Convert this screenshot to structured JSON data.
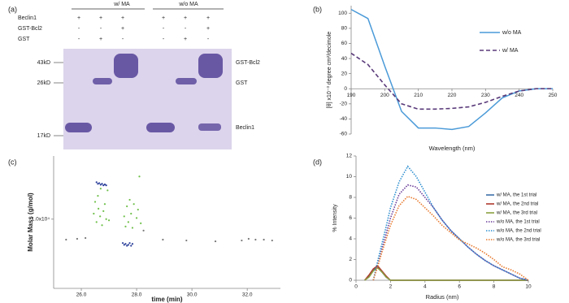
{
  "gel": {
    "label": "(a)",
    "groups": [
      "w/ MA",
      "w/o MA"
    ],
    "rows": [
      {
        "name": "Beclin1",
        "lanes": [
          "+",
          "+",
          "+",
          "+",
          "+",
          "+"
        ]
      },
      {
        "name": "GST-Bcl2",
        "lanes": [
          "-",
          "-",
          "+",
          "-",
          "-",
          "+"
        ]
      },
      {
        "name": "GST",
        "lanes": [
          "-",
          "+",
          "-",
          "-",
          "+",
          "-"
        ]
      }
    ],
    "markers": [
      "43kD",
      "26kD",
      "17kD"
    ],
    "bands": [
      "GST-Bcl2",
      "GST",
      "Beclin1"
    ]
  },
  "chart_data": [
    {
      "type": "line",
      "panel": "(b)",
      "x_label": "Wavelength (nm)",
      "y_label": "[θ] x10⁻³ degree cm²/decimole",
      "x": [
        190,
        195,
        200,
        205,
        210,
        215,
        220,
        225,
        230,
        235,
        240,
        245,
        250
      ],
      "series": [
        {
          "name": "w/o MA",
          "color": "#4a9ad8",
          "style": "solid",
          "values": [
            105,
            93,
            30,
            -30,
            -52,
            -52,
            -54,
            -50,
            -32,
            -12,
            -3,
            0,
            0
          ]
        },
        {
          "name": "w/ MA",
          "color": "#5a3a7a",
          "style": "dashed",
          "values": [
            47,
            32,
            5,
            -20,
            -27,
            -27,
            -26,
            -24,
            -18,
            -10,
            -3,
            0,
            0
          ]
        }
      ],
      "xlim": [
        190,
        250
      ],
      "xticks": [
        190,
        200,
        210,
        220,
        230,
        240,
        250
      ],
      "ylim": [
        -60,
        110
      ],
      "yticks": [
        -60,
        -40,
        -20,
        0,
        20,
        40,
        60,
        80,
        100
      ],
      "legend": "right"
    },
    {
      "type": "scatter",
      "panel": "(c)",
      "x_label": "time (min)",
      "y_label": "Molar Mass (g/mol)",
      "log_y": true,
      "series": [
        {
          "color": "#6fc04a",
          "x": [
            26.45,
            26.5,
            26.55,
            26.6,
            26.62,
            26.68,
            26.7,
            26.75,
            26.8,
            26.85,
            26.9,
            26.95,
            27.0,
            27.55,
            27.6,
            27.65,
            27.7,
            27.75,
            27.8,
            27.85,
            27.9,
            28.0,
            28.05,
            28.1,
            28.15
          ],
          "values": [
            11000,
            13500,
            9500,
            15000,
            12000,
            10500,
            17000,
            9000,
            11500,
            13000,
            10000,
            16500,
            9800,
            10500,
            8800,
            12500,
            9500,
            14000,
            11000,
            8600,
            13000,
            10200,
            11800,
            21000,
            9300
          ]
        },
        {
          "color": "#2a3f9a",
          "x": [
            26.55,
            26.6,
            26.65,
            26.7,
            26.75,
            26.8,
            26.85,
            26.9,
            27.5,
            27.55,
            27.6,
            27.65,
            27.7,
            27.75,
            27.8,
            27.85
          ],
          "values": [
            19000,
            18500,
            18700,
            18200,
            18500,
            18000,
            18300,
            18000,
            6600,
            6400,
            6500,
            6300,
            6400,
            6600,
            6300,
            6500
          ]
        },
        {
          "color": "#777777",
          "x": [
            25.45,
            25.85,
            26.15,
            28.25,
            28.95,
            29.8,
            30.85,
            31.8,
            32.05,
            32.3,
            32.6,
            32.9
          ],
          "values": [
            7000,
            7100,
            7200,
            8200,
            7000,
            6900,
            6800,
            6900,
            7100,
            7000,
            7000,
            6900
          ]
        }
      ],
      "xlim": [
        25,
        33.2
      ],
      "xticks": [
        {
          "value": 26,
          "label": "26.0"
        },
        {
          "value": 28,
          "label": "28.0"
        },
        {
          "value": 30,
          "label": "30.0"
        },
        {
          "value": 32,
          "label": "32.0"
        }
      ],
      "ylim": [
        3000,
        30000
      ],
      "yticks": [
        {
          "value": 10000,
          "label": "1.0x10⁴"
        }
      ]
    },
    {
      "type": "line",
      "panel": "(d)",
      "x_label": "Radius (nm)",
      "y_label": "% Intensity",
      "x": [
        0.5,
        0.75,
        1,
        1.25,
        1.5,
        1.75,
        2,
        2.5,
        3,
        3.5,
        4,
        4.5,
        5,
        5.5,
        6,
        6.5,
        7,
        7.5,
        8,
        8.5,
        9,
        9.5,
        10
      ],
      "series": [
        {
          "name": "w/ MA, the 1st trial",
          "color": "#3e6fa8",
          "style": "solid",
          "values": [
            0,
            0.4,
            1.0,
            1.3,
            0.8,
            0.3,
            0,
            0,
            0,
            0,
            0,
            0,
            0,
            0,
            0,
            0,
            0,
            0,
            0,
            0,
            0,
            0,
            0
          ]
        },
        {
          "name": "w/ MA, the 2nd trial",
          "color": "#b03a2e",
          "style": "solid",
          "values": [
            0,
            0.5,
            1.1,
            1.4,
            0.9,
            0.4,
            0,
            0,
            0,
            0,
            0,
            0,
            0,
            0,
            0,
            0,
            0,
            0,
            0,
            0,
            0,
            0,
            0
          ]
        },
        {
          "name": "w/ MA, the 3rd trial",
          "color": "#8aa040",
          "style": "solid",
          "values": [
            0,
            0.3,
            0.9,
            1.2,
            0.8,
            0.3,
            0,
            0,
            0,
            0,
            0,
            0,
            0,
            0,
            0,
            0,
            0,
            0,
            0,
            0,
            0,
            0,
            0
          ]
        },
        {
          "name": "w/o MA, the 1st trial",
          "color": "#6a3d9a",
          "style": "dotted",
          "values": [
            null,
            null,
            0,
            1.5,
            3,
            4.5,
            6,
            8.3,
            9.2,
            9,
            8,
            7,
            5.8,
            4.8,
            4,
            3.2,
            2.5,
            1.9,
            1.4,
            1,
            0.6,
            0.2,
            0
          ]
        },
        {
          "name": "w/o MA, the 2nd trial",
          "color": "#2e8fd0",
          "style": "dotted",
          "values": [
            null,
            null,
            0,
            1.8,
            3.5,
            5.2,
            7,
            9.5,
            11,
            10,
            8.5,
            7,
            5.8,
            4.8,
            4,
            3.2,
            2.5,
            1.9,
            1.4,
            1,
            0.6,
            0.2,
            0
          ]
        },
        {
          "name": "w/o MA, the 3rd trial",
          "color": "#e87a2e",
          "style": "dotted",
          "values": [
            null,
            null,
            0,
            1.3,
            2.7,
            4,
            5.3,
            7.2,
            8.1,
            7.8,
            7,
            6.2,
            5.3,
            4.6,
            3.9,
            3.5,
            3.1,
            2.6,
            2,
            1.3,
            1,
            0.6,
            0
          ]
        }
      ],
      "xlim": [
        0,
        10
      ],
      "xticks": [
        0,
        2,
        4,
        6,
        8,
        10
      ],
      "ylim": [
        0,
        12
      ],
      "yticks": [
        0,
        2,
        4,
        6,
        8,
        10,
        12
      ],
      "legend": "right"
    }
  ]
}
